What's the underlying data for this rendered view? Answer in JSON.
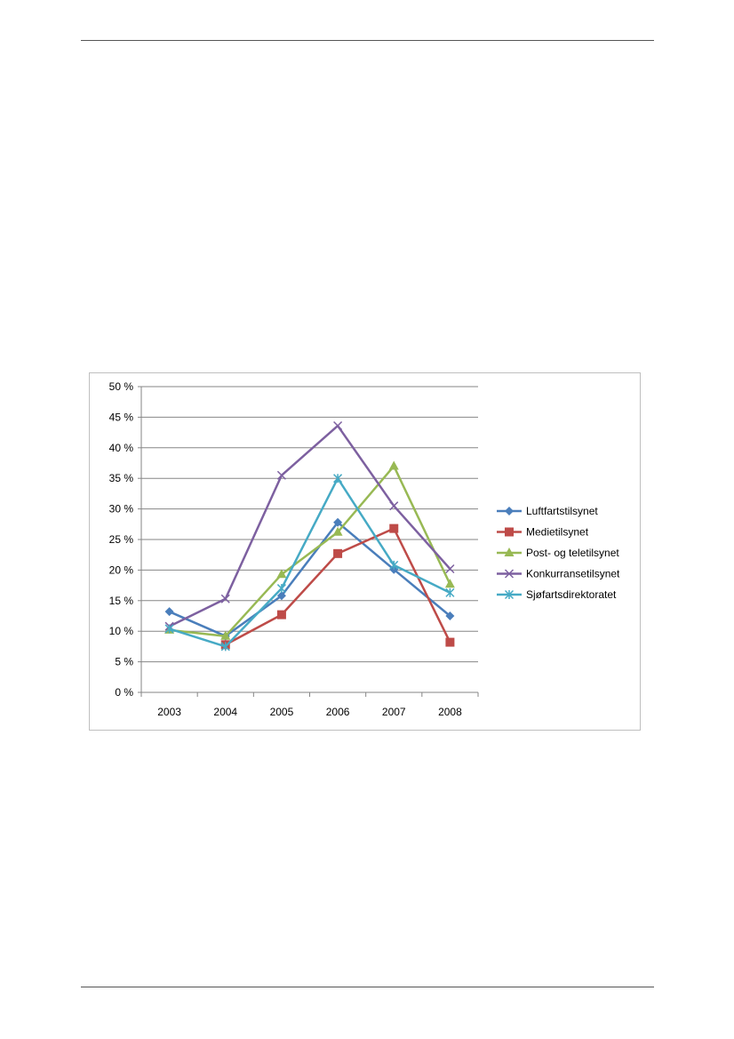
{
  "chart_data": {
    "type": "line",
    "categories": [
      "2003",
      "2004",
      "2005",
      "2006",
      "2007",
      "2008"
    ],
    "ylim": [
      0,
      50
    ],
    "yticks": [
      "0 %",
      "5 %",
      "10 %",
      "15 %",
      "20 %",
      "25 %",
      "30 %",
      "35 %",
      "40 %",
      "45 %",
      "50 %"
    ],
    "grid": true,
    "legend_position": "right",
    "series": [
      {
        "name": "Luftfartstilsynet",
        "values": [
          13.2,
          9.2,
          15.8,
          27.8,
          20.1,
          12.5
        ],
        "color": "#4a7ebb",
        "marker": "diamond"
      },
      {
        "name": "Medietilsynet",
        "values": [
          null,
          7.8,
          12.7,
          22.7,
          26.8,
          8.2
        ],
        "color": "#be4b48",
        "marker": "square"
      },
      {
        "name": "Post- og teletilsynet",
        "values": [
          10.2,
          9.2,
          19.3,
          26.2,
          37.0,
          17.7
        ],
        "color": "#98b954",
        "marker": "triangle"
      },
      {
        "name": "Konkurransetilsynet",
        "values": [
          10.8,
          15.3,
          35.5,
          43.6,
          30.5,
          20.2
        ],
        "color": "#7d60a0",
        "marker": "x"
      },
      {
        "name": "Sjøfartsdirektoratet",
        "values": [
          10.4,
          7.5,
          17.0,
          35.0,
          20.8,
          16.3
        ],
        "color": "#46aac5",
        "marker": "star"
      }
    ]
  }
}
